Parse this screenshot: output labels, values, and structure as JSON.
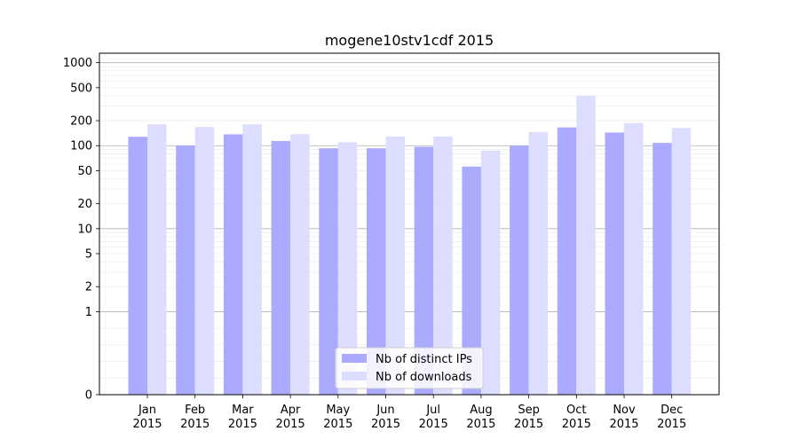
{
  "chart_data": {
    "type": "bar",
    "title": "mogene10stv1cdf 2015",
    "xlabel": "",
    "ylabel": "",
    "yscale": "symlog",
    "ylim": [
      0,
      1300
    ],
    "yticks": [
      0,
      1,
      2,
      5,
      10,
      20,
      50,
      100,
      200,
      500,
      1000
    ],
    "ytick_labels": [
      "0",
      "1",
      "2",
      "5",
      "10",
      "20",
      "50",
      "100",
      "200",
      "500",
      "1000"
    ],
    "categories": [
      {
        "month": "Jan",
        "year": "2015"
      },
      {
        "month": "Feb",
        "year": "2015"
      },
      {
        "month": "Mar",
        "year": "2015"
      },
      {
        "month": "Apr",
        "year": "2015"
      },
      {
        "month": "May",
        "year": "2015"
      },
      {
        "month": "Jun",
        "year": "2015"
      },
      {
        "month": "Jul",
        "year": "2015"
      },
      {
        "month": "Aug",
        "year": "2015"
      },
      {
        "month": "Sep",
        "year": "2015"
      },
      {
        "month": "Oct",
        "year": "2015"
      },
      {
        "month": "Nov",
        "year": "2015"
      },
      {
        "month": "Dec",
        "year": "2015"
      }
    ],
    "series": [
      {
        "name": "Nb of distinct IPs",
        "color": "#aaaaff",
        "values": [
          128,
          100,
          137,
          114,
          93,
          93,
          97,
          56,
          100,
          166,
          144,
          108
        ]
      },
      {
        "name": "Nb of downloads",
        "color": "#ddddff",
        "values": [
          181,
          168,
          181,
          138,
          110,
          129,
          129,
          87,
          146,
          398,
          188,
          163
        ]
      }
    ],
    "grid": true,
    "legend_position": "bottom-center"
  }
}
